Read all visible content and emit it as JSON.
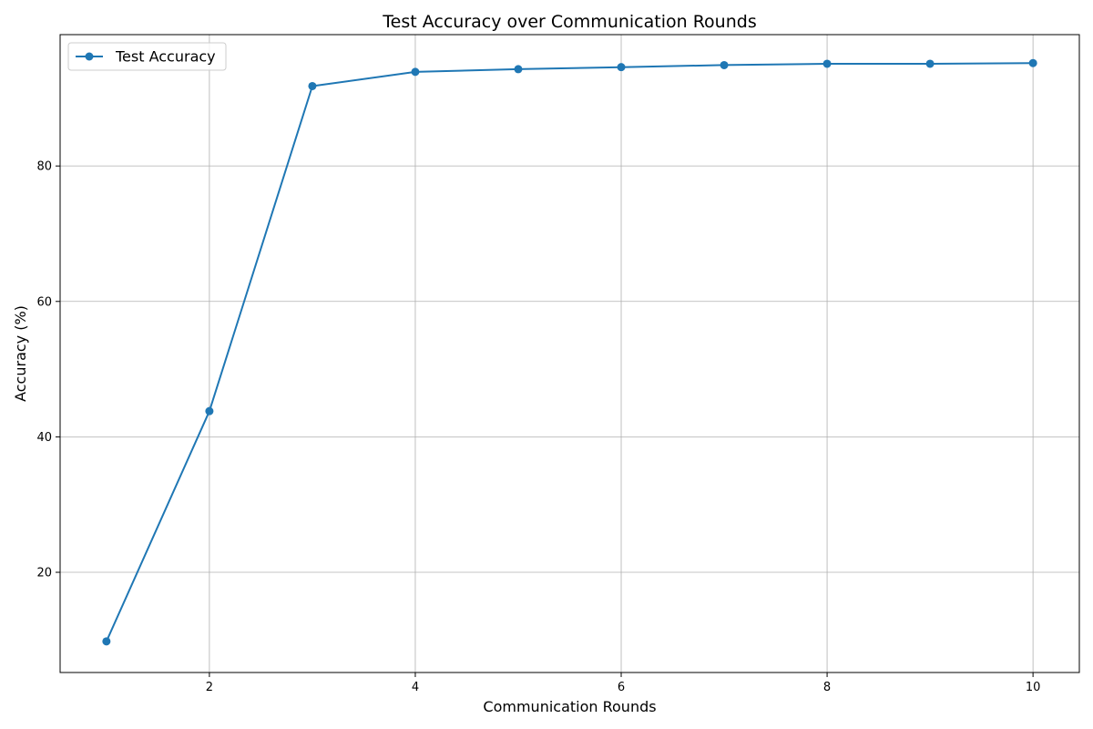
{
  "chart_data": {
    "type": "line",
    "title": "Test Accuracy over Communication Rounds",
    "xlabel": "Communication Rounds",
    "ylabel": "Accuracy (%)",
    "xlim": [
      0.55,
      10.45
    ],
    "ylim": [
      5.2,
      99.4
    ],
    "xticks": [
      2,
      4,
      6,
      8,
      10
    ],
    "yticks": [
      20,
      40,
      60,
      80
    ],
    "grid": true,
    "legend_position": "top-left",
    "series": [
      {
        "name": "Test Accuracy",
        "color": "#1f77b4",
        "marker": "circle",
        "x": [
          1,
          2,
          3,
          4,
          5,
          6,
          7,
          8,
          9,
          10
        ],
        "y": [
          9.8,
          43.8,
          91.8,
          93.9,
          94.3,
          94.6,
          94.9,
          95.1,
          95.1,
          95.2
        ]
      }
    ]
  }
}
